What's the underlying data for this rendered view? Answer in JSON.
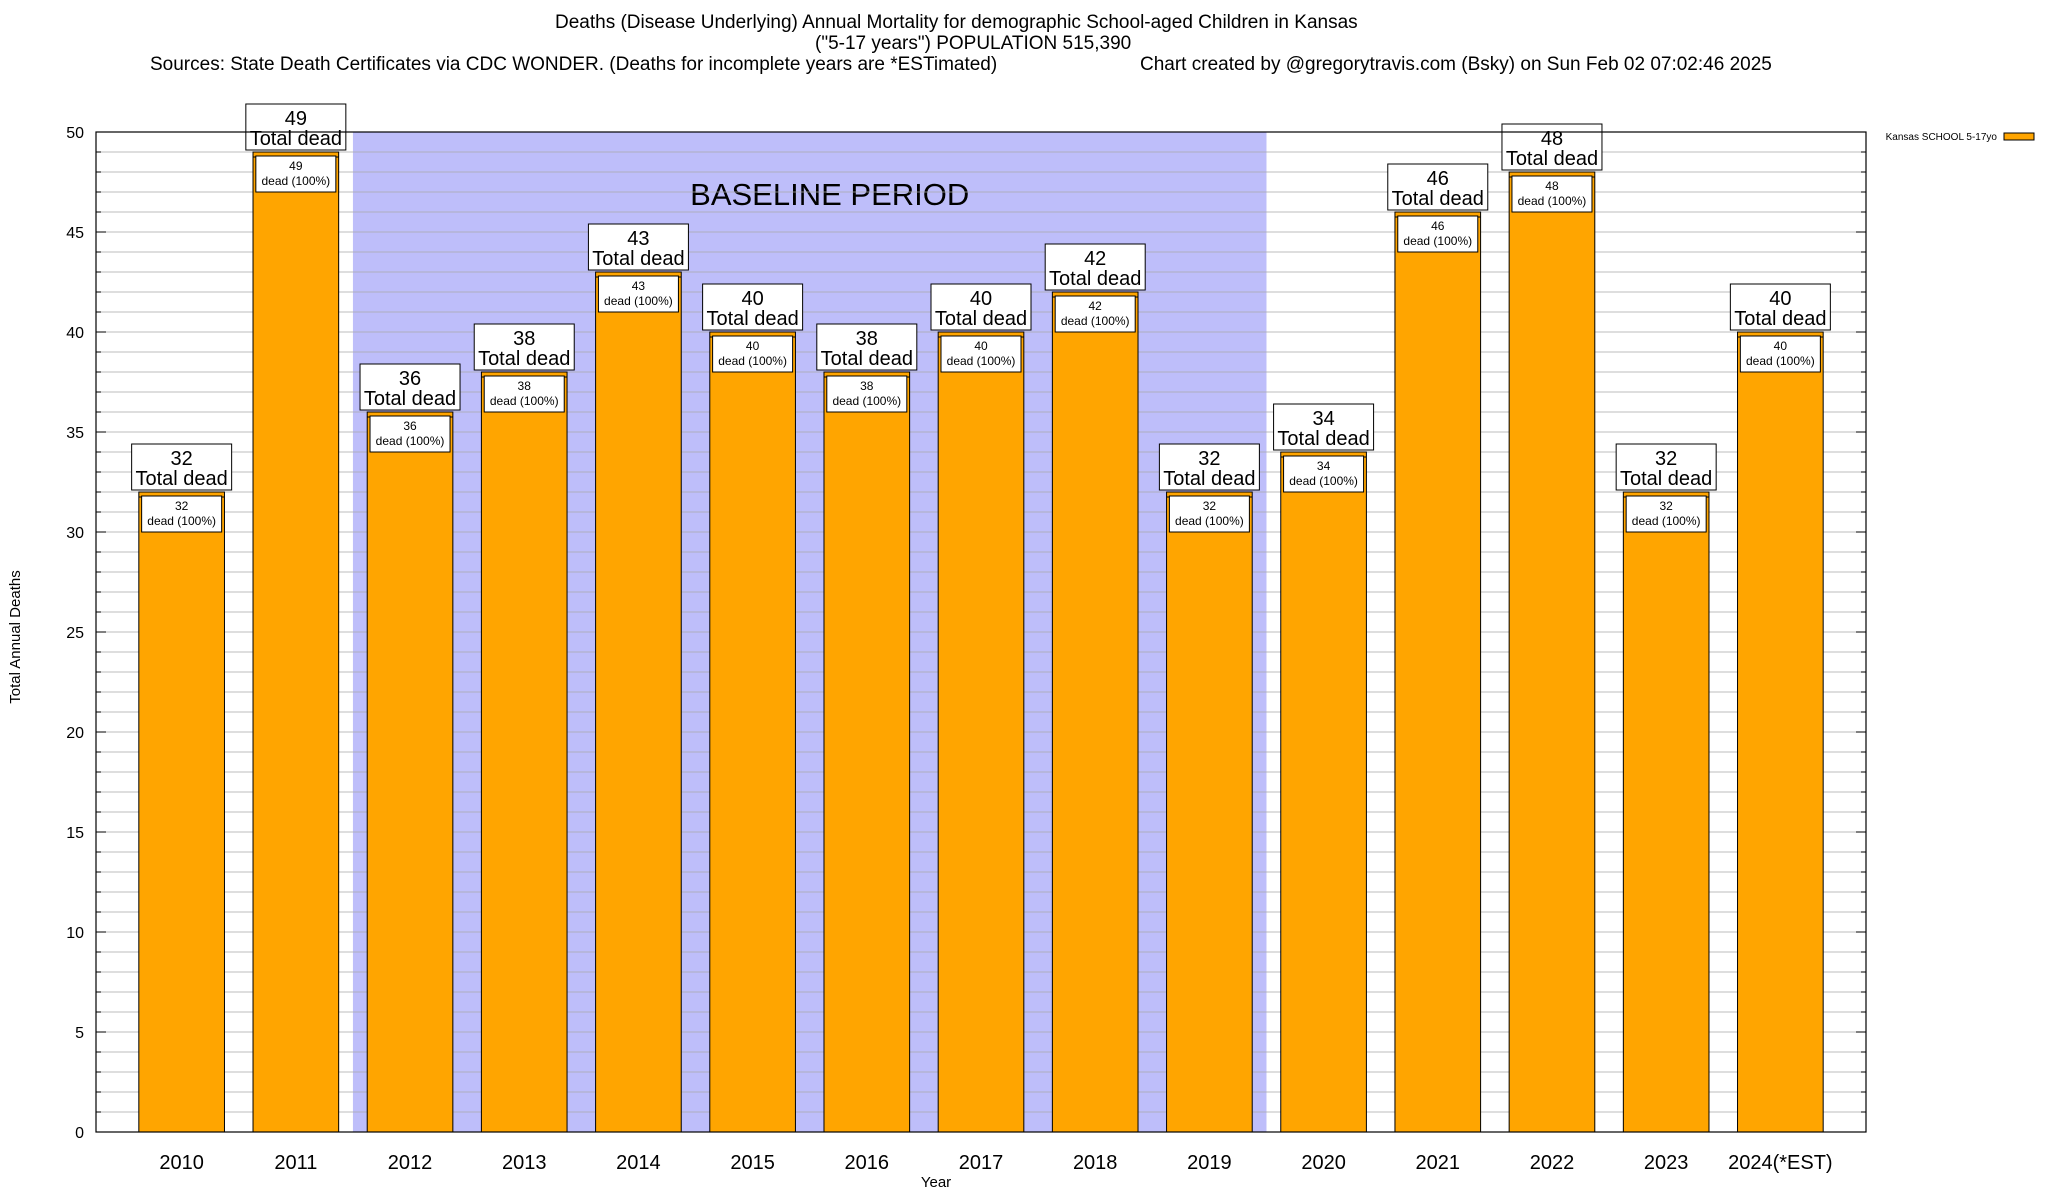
{
  "header": {
    "title": "Deaths (Disease Underlying) Annual Mortality for demographic School-aged Children in Kansas",
    "subtitle": "(\"5-17 years\") POPULATION 515,390",
    "sources": "Sources: State Death Certificates via CDC WONDER. (Deaths for incomplete years are *ESTimated)",
    "credit": "Chart created by @gregorytravis.com (Bsky) on Sun Feb 02 07:02:46 2025"
  },
  "chart_data": {
    "type": "bar",
    "categories": [
      "2010",
      "2011",
      "2012",
      "2013",
      "2014",
      "2015",
      "2016",
      "2017",
      "2018",
      "2019",
      "2020",
      "2021",
      "2022",
      "2023",
      "2024(*EST)"
    ],
    "series": [
      {
        "name": "Kansas SCHOOL 5-17yo",
        "values": [
          32,
          49,
          36,
          38,
          43,
          40,
          38,
          40,
          42,
          32,
          34,
          46,
          48,
          32,
          40
        ]
      }
    ],
    "total_label": "Total dead",
    "bar_label_suffix": "dead (100%)",
    "xlabel": "Year",
    "ylabel": "Total Annual Deaths",
    "ylim": [
      0,
      50
    ],
    "yticks": [
      0,
      5,
      10,
      15,
      20,
      25,
      30,
      35,
      40,
      45,
      50
    ],
    "grid": true,
    "legend_position": "top-right",
    "baseline": {
      "label": "BASELINE PERIOD",
      "start": "2012",
      "end": "2019"
    },
    "colors": {
      "bar": "#FFA500",
      "baseline_band": "#BEBEFA",
      "frame": "#000000"
    }
  }
}
